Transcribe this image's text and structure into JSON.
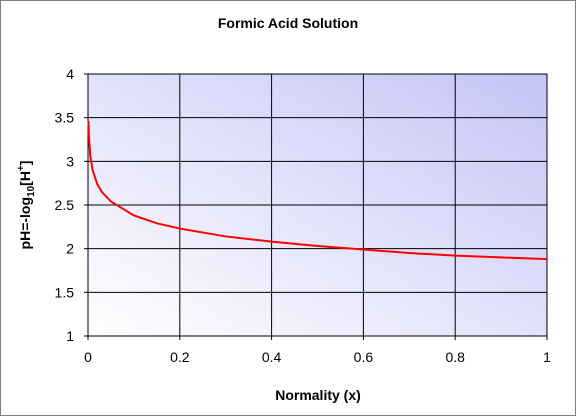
{
  "chart_data": {
    "type": "line",
    "title": "Formic Acid Solution",
    "x_label": "Normality (x)",
    "y_label": [
      "pH=-log",
      "10",
      "[H",
      "+",
      "]"
    ],
    "x": [
      0.001,
      0.002,
      0.005,
      0.01,
      0.02,
      0.03,
      0.05,
      0.1,
      0.15,
      0.2,
      0.3,
      0.4,
      0.5,
      0.6,
      0.7,
      0.8,
      0.9,
      1.0
    ],
    "series": [
      {
        "color": "#ff0000",
        "values": [
          3.46,
          3.29,
          3.06,
          2.9,
          2.74,
          2.65,
          2.54,
          2.38,
          2.29,
          2.23,
          2.14,
          2.08,
          2.03,
          1.99,
          1.95,
          1.92,
          1.9,
          1.88
        ]
      }
    ],
    "xlim": [
      0,
      1
    ],
    "xticks": [
      0,
      0.2,
      0.4,
      0.6,
      0.8,
      1
    ],
    "ylim": [
      1,
      4
    ],
    "yticks": [
      1,
      1.5,
      2,
      2.5,
      3,
      3.5,
      4
    ],
    "grid": true
  }
}
